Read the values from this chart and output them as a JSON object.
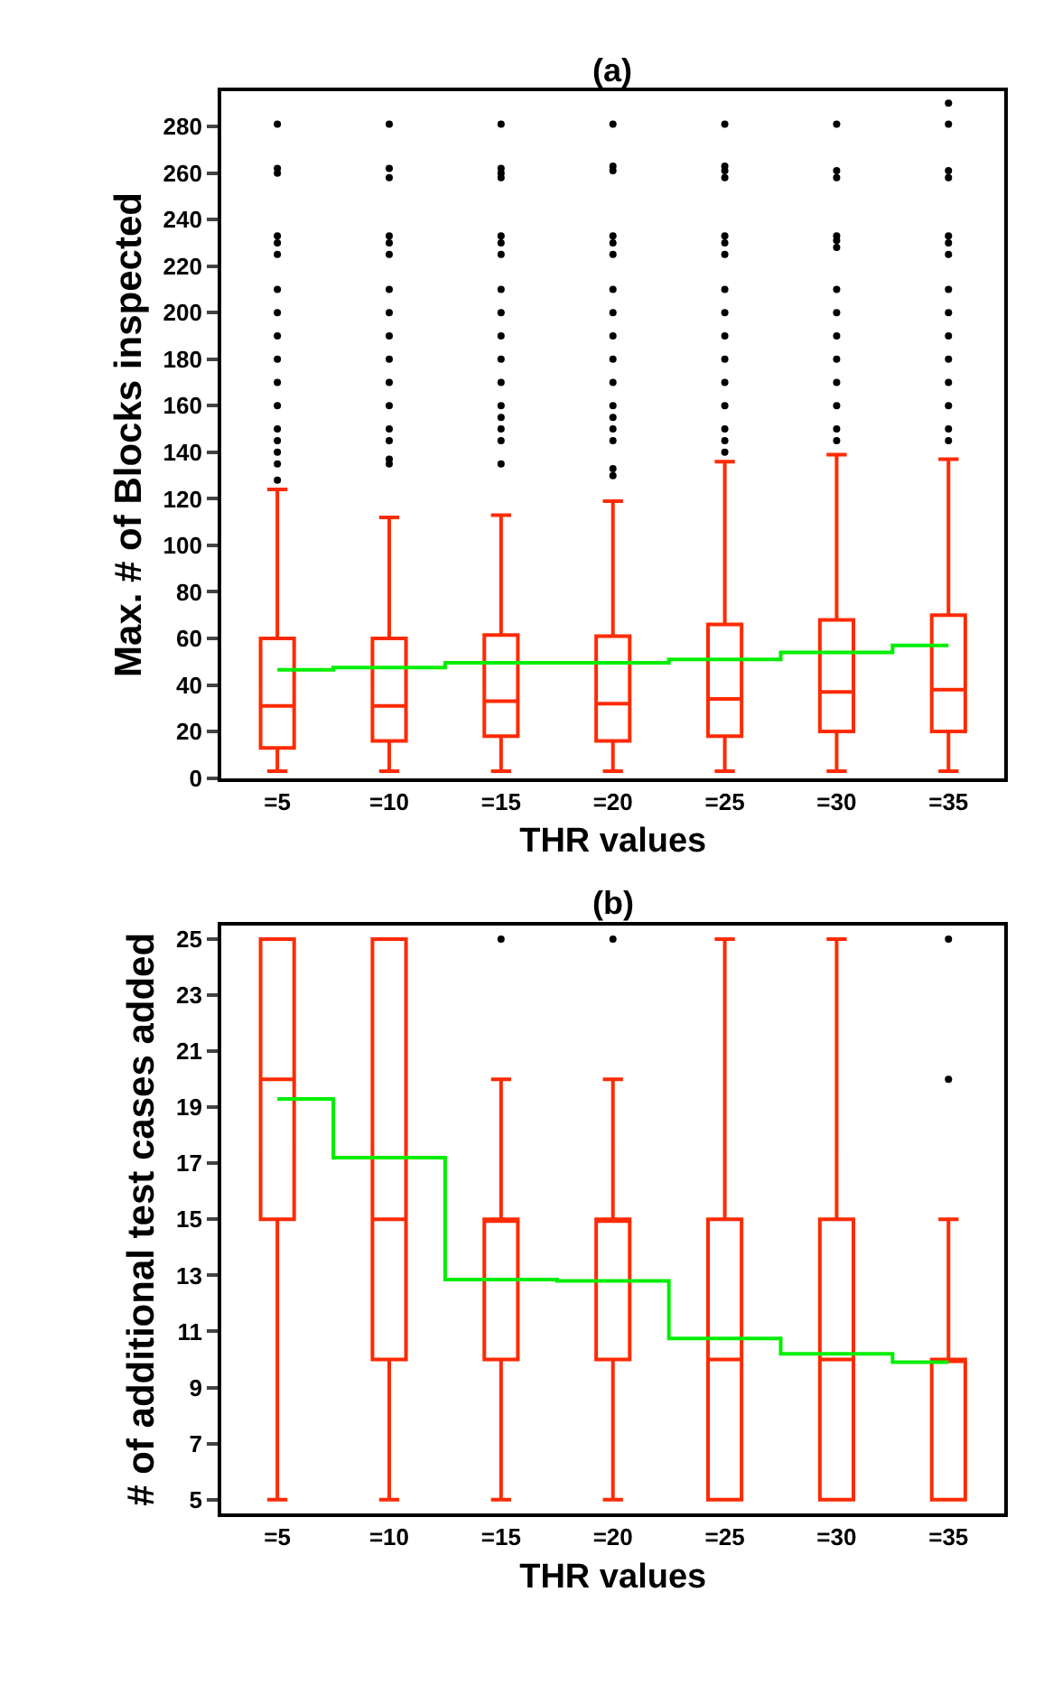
{
  "chart_data": [
    {
      "type": "box",
      "title": "(a)",
      "xlabel": "THR values",
      "ylabel": "Max. # of Blocks inspected",
      "categories": [
        "=5",
        "=10",
        "=15",
        "=20",
        "=25",
        "=30",
        "=35"
      ],
      "ylim": [
        0,
        295
      ],
      "yticks": [
        0,
        20,
        40,
        60,
        80,
        100,
        120,
        140,
        160,
        180,
        200,
        220,
        240,
        260,
        280
      ],
      "color": "#ff2a00",
      "legend": false,
      "boxes": [
        {
          "low": 3,
          "q1": 13,
          "median": 31,
          "q3": 60,
          "high": 124,
          "outliers": [
            128,
            135,
            140,
            145,
            150,
            160,
            170,
            180,
            190,
            200,
            210,
            225,
            230,
            233,
            260,
            262,
            281
          ]
        },
        {
          "low": 3,
          "q1": 16,
          "median": 31,
          "q3": 60,
          "high": 112,
          "outliers": [
            135,
            137,
            145,
            150,
            160,
            170,
            180,
            190,
            200,
            210,
            225,
            230,
            233,
            258,
            262,
            281
          ]
        },
        {
          "low": 3,
          "q1": 18,
          "median": 33,
          "q3": 61.5,
          "high": 113,
          "outliers": [
            135,
            145,
            150,
            155,
            160,
            170,
            180,
            190,
            200,
            210,
            225,
            230,
            233,
            258,
            260,
            262,
            281
          ]
        },
        {
          "low": 3,
          "q1": 16,
          "median": 32,
          "q3": 61,
          "high": 119,
          "outliers": [
            130,
            133,
            145,
            150,
            155,
            160,
            170,
            180,
            190,
            200,
            210,
            225,
            230,
            233,
            261,
            263,
            281
          ]
        },
        {
          "low": 3,
          "q1": 18,
          "median": 34,
          "q3": 66,
          "high": 136,
          "outliers": [
            140,
            145,
            150,
            160,
            170,
            180,
            190,
            200,
            210,
            225,
            230,
            233,
            258,
            261,
            263,
            281
          ]
        },
        {
          "low": 3,
          "q1": 20,
          "median": 37,
          "q3": 68,
          "high": 139,
          "outliers": [
            145,
            150,
            160,
            170,
            180,
            190,
            200,
            210,
            228,
            231,
            233,
            258,
            261,
            281
          ]
        },
        {
          "low": 3,
          "q1": 20,
          "median": 38,
          "q3": 70,
          "high": 137,
          "outliers": [
            145,
            150,
            160,
            170,
            180,
            190,
            200,
            210,
            225,
            230,
            233,
            258,
            261,
            281,
            290
          ]
        }
      ],
      "series": [
        {
          "type": "step",
          "color": "#00ee00",
          "values": [
            46.5,
            47.5,
            49.5,
            49.5,
            51,
            54,
            57
          ]
        }
      ]
    },
    {
      "type": "box",
      "title": "(b)",
      "xlabel": "THR values",
      "ylabel": "# of additional test cases added",
      "categories": [
        "=5",
        "=10",
        "=15",
        "=20",
        "=25",
        "=30",
        "=35"
      ],
      "ylim": [
        4.5,
        25.5
      ],
      "yticks": [
        5,
        7,
        9,
        11,
        13,
        15,
        17,
        19,
        21,
        23,
        25
      ],
      "color": "#ff2a00",
      "legend": false,
      "boxes": [
        {
          "low": 5,
          "q1": 15,
          "median": 20,
          "q3": 25,
          "high": 25
        },
        {
          "low": 5,
          "q1": 10,
          "median": 15,
          "q3": 25,
          "high": 25
        },
        {
          "low": 5,
          "q1": 10,
          "median": 15,
          "q3": 15,
          "high": 20,
          "outliers": [
            25
          ]
        },
        {
          "low": 5,
          "q1": 10,
          "median": 15,
          "q3": 15,
          "high": 20,
          "outliers": [
            25
          ]
        },
        {
          "low": 5,
          "q1": 5,
          "median": 10,
          "q3": 15,
          "high": 25
        },
        {
          "low": 5,
          "q1": 5,
          "median": 10,
          "q3": 15,
          "high": 25
        },
        {
          "low": 5,
          "q1": 5,
          "median": 10,
          "q3": 10,
          "high": 15,
          "outliers": [
            20,
            25
          ]
        }
      ],
      "series": [
        {
          "type": "step",
          "color": "#00ee00",
          "values": [
            19.3,
            17.2,
            12.85,
            12.8,
            10.75,
            10.2,
            9.9
          ]
        }
      ]
    }
  ]
}
